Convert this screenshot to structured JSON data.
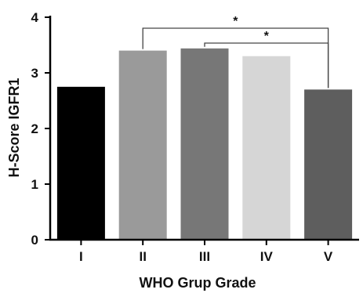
{
  "chart_data": {
    "type": "bar",
    "categories": [
      "I",
      "II",
      "III",
      "IV",
      "V"
    ],
    "values": [
      2.75,
      3.4,
      3.44,
      3.3,
      2.7
    ],
    "colors": [
      "#000000",
      "#9a9a9a",
      "#777777",
      "#d6d6d6",
      "#5e5e5e"
    ],
    "xlabel": "WHO Grup Grade",
    "ylabel": "H-Score IGFR1",
    "ylim": [
      0,
      4
    ],
    "yticks": [
      0,
      1,
      2,
      3,
      4
    ],
    "grid": false,
    "annotations": [
      {
        "from": "II",
        "to": "V",
        "label": "*"
      },
      {
        "from": "III",
        "to": "V",
        "label": "*"
      }
    ]
  }
}
